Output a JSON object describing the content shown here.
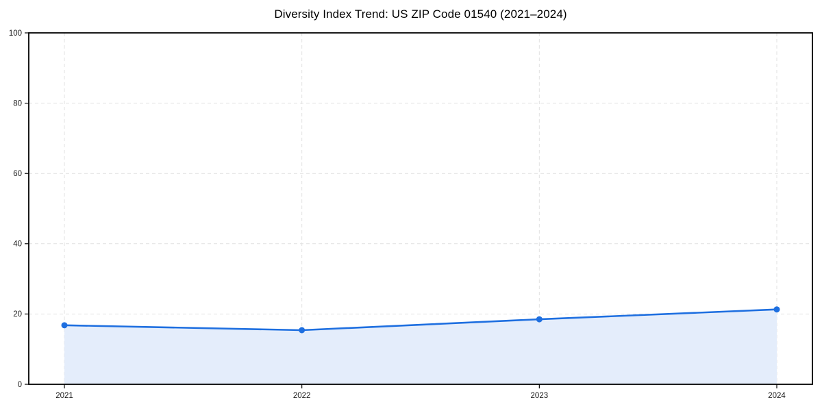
{
  "chart_data": {
    "type": "area",
    "title": "Diversity Index Trend: US ZIP Code 01540 (2021–2024)",
    "x": [
      2021,
      2022,
      2023,
      2024
    ],
    "categories": [
      "2021",
      "2022",
      "2023",
      "2024"
    ],
    "series": [
      {
        "name": "Diversity Index",
        "values": [
          16.8,
          15.4,
          18.5,
          21.3
        ]
      }
    ],
    "xlabel": "",
    "ylabel": "",
    "xlim": [
      2020.85,
      2024.15
    ],
    "ylim": [
      0,
      100
    ],
    "xticks": [
      2021,
      2022,
      2023,
      2024
    ],
    "yticks": [
      0,
      20,
      40,
      60,
      80,
      100
    ],
    "grid": true,
    "grid_style": "dashed",
    "legend": "none",
    "colors": {
      "line": "#1e6fe0",
      "marker": "#1e6fe0",
      "fill": "#e4edfb",
      "grid": "#e1e1e1",
      "spine": "#000000",
      "tick_text": "#1a1a1a",
      "title_text": "#000000",
      "background": "#ffffff"
    }
  }
}
